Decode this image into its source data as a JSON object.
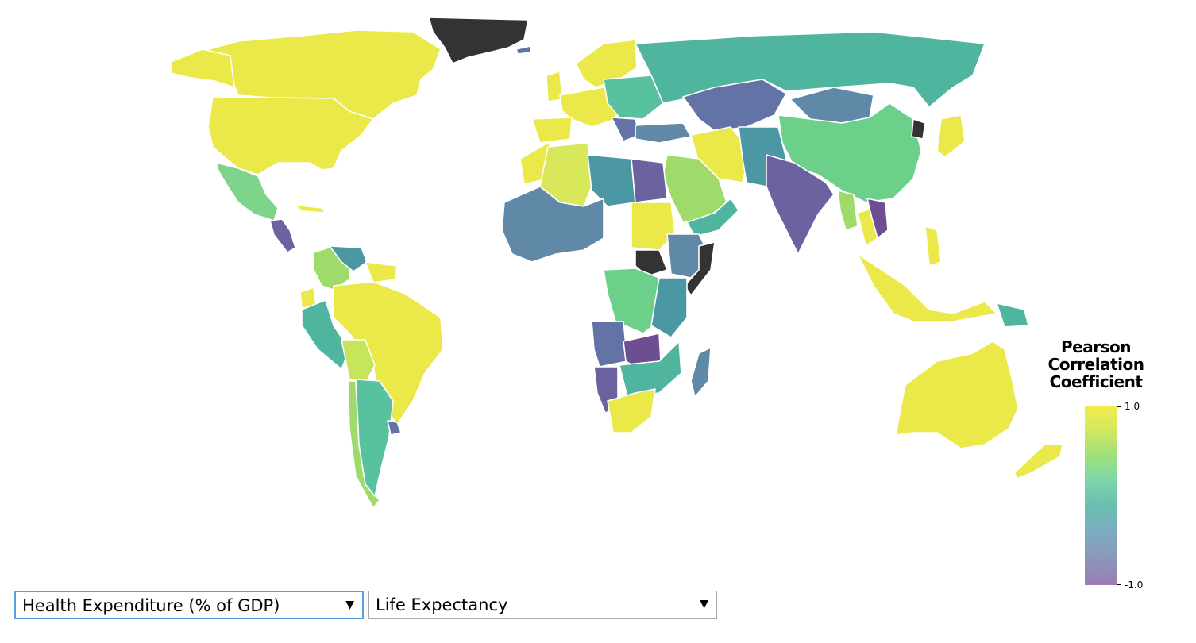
{
  "legend": {
    "title_lines": [
      "Pearson",
      "Correlation",
      "Coefficient"
    ],
    "max_label": "1.0",
    "min_label": "-1.0",
    "gradient_colors": [
      "#f2ec4a",
      "#9fe07c",
      "#68c0b0",
      "#8f91bb",
      "#9a7db2"
    ]
  },
  "controls": {
    "x_variable": {
      "selected": "Health Expenditure (% of GDP)",
      "arrow": "▼"
    },
    "y_variable": {
      "selected": "Life Expectancy",
      "arrow": "▼"
    }
  },
  "palette": {
    "yellow": "#ebe84a",
    "light_yellow_green": "#c7e55a",
    "light_green": "#9fdb6a",
    "green": "#6ccf8a",
    "mint": "#58c2a0",
    "teal": "#4fb59e",
    "teal_blue": "#4b98a4",
    "blue_gray": "#5f89a7",
    "slate": "#6373a5",
    "indigo": "#6b62a0",
    "purple": "#6e4d93",
    "no_data": "#333333"
  }
}
